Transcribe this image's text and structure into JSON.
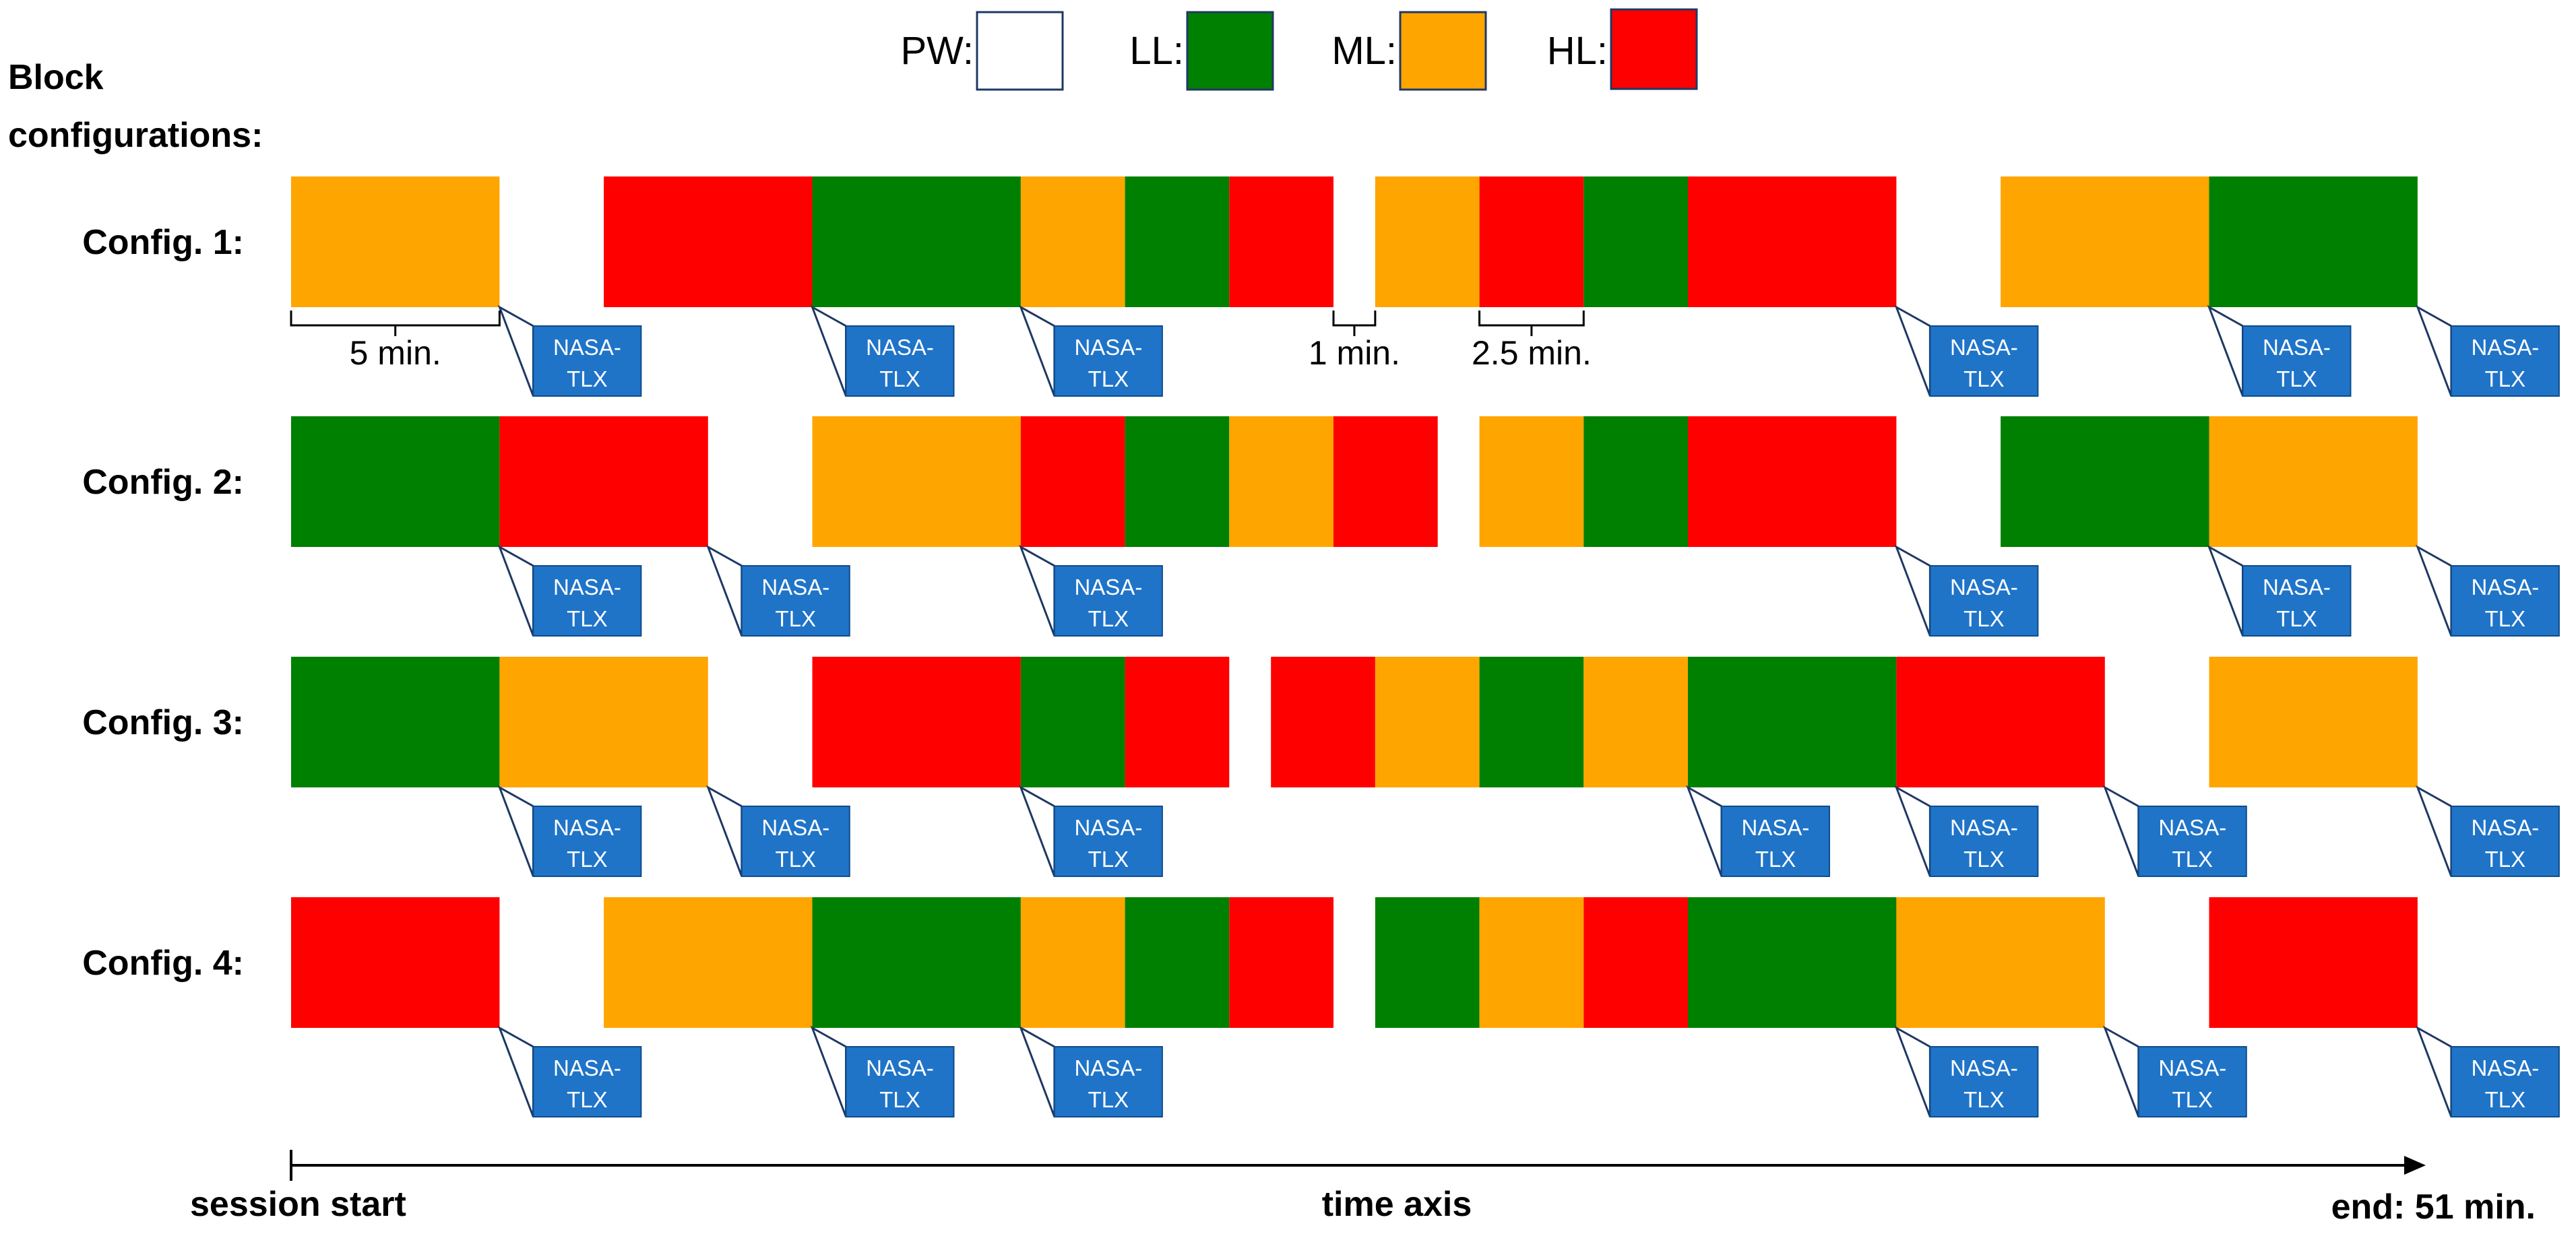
{
  "legend": {
    "items": [
      {
        "key": "PW",
        "label": "PW:",
        "color": "#ffffff",
        "border": "#1f3864"
      },
      {
        "key": "LL",
        "label": "LL:",
        "color": "#008000",
        "border": "#1f3864"
      },
      {
        "key": "ML",
        "label": "ML:",
        "color": "#ffa500",
        "border": "#1f3864"
      },
      {
        "key": "HL",
        "label": "HL:",
        "color": "#ff0000",
        "border": "#1f3864"
      }
    ]
  },
  "heading": {
    "line1": "Block",
    "line2": "configurations:"
  },
  "timeline": {
    "unit_minutes": 2.5,
    "total_minutes": 51,
    "start_label": "session start",
    "axis_label": "time axis",
    "end_label": "end: 51 min."
  },
  "nasa_label": {
    "line1": "NASA-",
    "line2": "TLX"
  },
  "colors": {
    "nasa_fill": "#1f74c8",
    "nasa_stroke": "#0f4c8a",
    "outline": "#1f3864",
    "axis": "#000000",
    "text": "#000000"
  },
  "configs": [
    {
      "label": "Config. 1:",
      "blocks": [
        {
          "type": "ML",
          "start": 0,
          "units": 2
        },
        {
          "type": "HL",
          "start": 3,
          "units": 2
        },
        {
          "type": "LL",
          "start": 5,
          "units": 2
        },
        {
          "type": "ML",
          "start": 7,
          "units": 1
        },
        {
          "type": "LL",
          "start": 8,
          "units": 1
        },
        {
          "type": "HL",
          "start": 9,
          "units": 1
        },
        {
          "type": "ML",
          "start": 10.4,
          "units": 1
        },
        {
          "type": "HL",
          "start": 11.4,
          "units": 1
        },
        {
          "type": "LL",
          "start": 12.4,
          "units": 1
        },
        {
          "type": "HL",
          "start": 13.4,
          "units": 2
        },
        {
          "type": "ML",
          "start": 16.4,
          "units": 2
        },
        {
          "type": "LL",
          "start": 18.4,
          "units": 2
        }
      ],
      "nasa_at": [
        2,
        5,
        7,
        15.4,
        18.4,
        20.4
      ]
    },
    {
      "label": "Config. 2:",
      "blocks": [
        {
          "type": "LL",
          "start": 0,
          "units": 2
        },
        {
          "type": "HL",
          "start": 2,
          "units": 2
        },
        {
          "type": "ML",
          "start": 5,
          "units": 2
        },
        {
          "type": "HL",
          "start": 7,
          "units": 1
        },
        {
          "type": "LL",
          "start": 8,
          "units": 1
        },
        {
          "type": "ML",
          "start": 9,
          "units": 1
        },
        {
          "type": "HL",
          "start": 10,
          "units": 1
        },
        {
          "type": "ML",
          "start": 11.4,
          "units": 1
        },
        {
          "type": "LL",
          "start": 12.4,
          "units": 1
        },
        {
          "type": "HL",
          "start": 13.4,
          "units": 2
        },
        {
          "type": "LL",
          "start": 16.4,
          "units": 2
        },
        {
          "type": "ML",
          "start": 18.4,
          "units": 2
        }
      ],
      "nasa_at": [
        2,
        4,
        7,
        15.4,
        18.4,
        20.4
      ]
    },
    {
      "label": "Config. 3:",
      "blocks": [
        {
          "type": "LL",
          "start": 0,
          "units": 2
        },
        {
          "type": "ML",
          "start": 2,
          "units": 2
        },
        {
          "type": "HL",
          "start": 5,
          "units": 2
        },
        {
          "type": "LL",
          "start": 7,
          "units": 1
        },
        {
          "type": "HL",
          "start": 8,
          "units": 1
        },
        {
          "type": "HL",
          "start": 9.4,
          "units": 1
        },
        {
          "type": "ML",
          "start": 10.4,
          "units": 1
        },
        {
          "type": "LL",
          "start": 11.4,
          "units": 1
        },
        {
          "type": "ML",
          "start": 12.4,
          "units": 1
        },
        {
          "type": "LL",
          "start": 13.4,
          "units": 2
        },
        {
          "type": "HL",
          "start": 15.4,
          "units": 2
        },
        {
          "type": "ML",
          "start": 18.4,
          "units": 2
        }
      ],
      "nasa_at": [
        2,
        4,
        7,
        13.4,
        15.4,
        17.4,
        20.4
      ]
    },
    {
      "label": "Config. 4:",
      "blocks": [
        {
          "type": "HL",
          "start": 0,
          "units": 2
        },
        {
          "type": "ML",
          "start": 3,
          "units": 2
        },
        {
          "type": "LL",
          "start": 5,
          "units": 2
        },
        {
          "type": "ML",
          "start": 7,
          "units": 1
        },
        {
          "type": "LL",
          "start": 8,
          "units": 1
        },
        {
          "type": "HL",
          "start": 9,
          "units": 1
        },
        {
          "type": "LL",
          "start": 10.4,
          "units": 1
        },
        {
          "type": "ML",
          "start": 11.4,
          "units": 1
        },
        {
          "type": "HL",
          "start": 12.4,
          "units": 1
        },
        {
          "type": "LL",
          "start": 13.4,
          "units": 2
        },
        {
          "type": "ML",
          "start": 15.4,
          "units": 2
        },
        {
          "type": "HL",
          "start": 18.4,
          "units": 2
        }
      ],
      "nasa_at": [
        2,
        5,
        7,
        15.4,
        17.4,
        20.4
      ]
    }
  ],
  "annotations": [
    {
      "config_index": 0,
      "label": "5 min.",
      "from": 0,
      "to": 2
    },
    {
      "config_index": 0,
      "label": "1 min.",
      "from": 10,
      "to": 10.4
    },
    {
      "config_index": 0,
      "label": "2.5 min.",
      "from": 11.4,
      "to": 12.4
    }
  ]
}
